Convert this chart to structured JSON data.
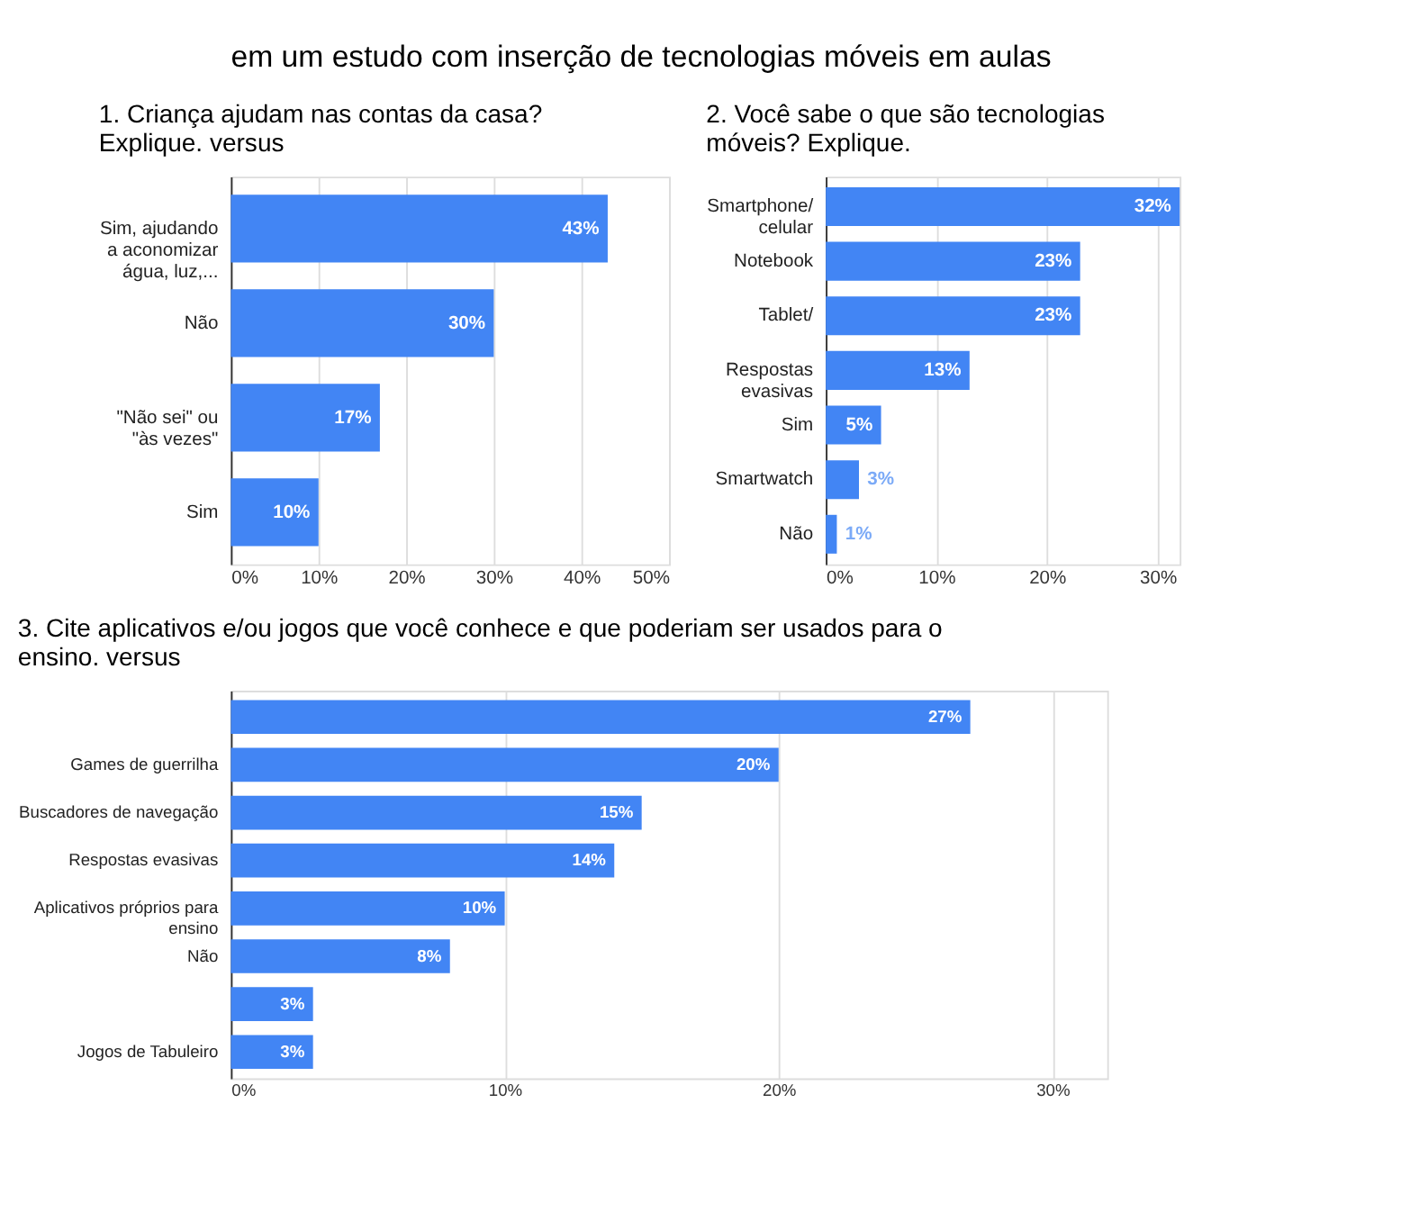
{
  "chart_data": [
    {
      "type": "bar",
      "orientation": "horizontal",
      "title": "1. Criança ajudam nas contas da casa? Explique. versus",
      "annotations": [
        "em um estudo com inserção de tecnologias móveis em aulas"
      ],
      "categories": [
        "Sim, ajudando a aconomizar água, luz,...",
        "Não",
        "\"Não sei\" ou \"às vezes\"",
        "Sim"
      ],
      "values": [
        43,
        30,
        17,
        10
      ],
      "value_labels": [
        "43%",
        "30%",
        "17%",
        "10%"
      ],
      "color": "#4285f4",
      "xlim": [
        0,
        50
      ],
      "xticks": [
        {
          "value": 0,
          "label": "0%"
        },
        {
          "value": 10,
          "label": "10%"
        },
        {
          "value": 20,
          "label": "20%"
        },
        {
          "value": 30,
          "label": "30%"
        },
        {
          "value": 40,
          "label": "40%"
        },
        {
          "value": 50,
          "label": "50%"
        }
      ],
      "grid": "x"
    },
    {
      "type": "bar",
      "orientation": "horizontal",
      "title": "2. Você sabe o que são tecnologias móveis? Explique.",
      "categories": [
        "Smartphone/ celular",
        "Notebook",
        "Tablet/",
        "Respostas evasivas",
        "Sim",
        "Smartwatch",
        "Não"
      ],
      "values": [
        32,
        23,
        23,
        13,
        5,
        3,
        1
      ],
      "value_labels": [
        "32%",
        "23%",
        "23%",
        "13%",
        "5%",
        "3%",
        "1%"
      ],
      "color": "#4285f4",
      "xlim": [
        0,
        32
      ],
      "xticks": [
        {
          "value": 0,
          "label": "0%"
        },
        {
          "value": 10,
          "label": "10%"
        },
        {
          "value": 20,
          "label": "20%"
        },
        {
          "value": 30,
          "label": "30%"
        }
      ],
      "grid": "x"
    },
    {
      "type": "bar",
      "orientation": "horizontal",
      "title": "3. Cite aplicativos e/ou jogos que você conhece e que poderiam ser usados para o ensino. versus",
      "categories": [
        null,
        "Games de guerrilha",
        "Buscadores de navegação",
        "Respostas evasivas",
        "Aplicativos próprios para ensino",
        "Não",
        null,
        "Jogos de Tabuleiro"
      ],
      "values": [
        27,
        20,
        15,
        14,
        10,
        8,
        3,
        3
      ],
      "value_labels": [
        "27%",
        "20%",
        "15%",
        "14%",
        "10%",
        "8%",
        "3%",
        "3%"
      ],
      "color": "#4285f4",
      "xlim": [
        0,
        32
      ],
      "xticks": [
        {
          "value": 0,
          "label": "0%"
        },
        {
          "value": 10,
          "label": "10%"
        },
        {
          "value": 20,
          "label": "20%"
        },
        {
          "value": 30,
          "label": "30%"
        }
      ],
      "grid": "x"
    }
  ]
}
